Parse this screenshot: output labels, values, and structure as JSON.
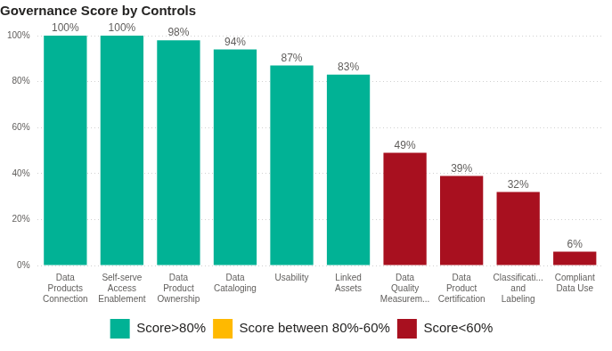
{
  "chart_data": {
    "type": "bar",
    "title": "Governance Score by Controls",
    "categories": [
      "Data Products Connection",
      "Self-serve Access Enablement",
      "Data Product Ownership",
      "Data Cataloging",
      "Usability",
      "Linked Assets",
      "Data Quality Measurem...",
      "Data Product Certification",
      "Classificati... and Labeling",
      "Compliant Data Use"
    ],
    "series": [
      {
        "name": "Score>80%",
        "color": "#01B295",
        "values": [
          100,
          100,
          98,
          94,
          87,
          83,
          null,
          null,
          null,
          null
        ],
        "value_labels": [
          "100%",
          "100%",
          "98%",
          "94%",
          "87%",
          "83%",
          null,
          null,
          null,
          null
        ]
      },
      {
        "name": "Score between 80%-60%",
        "color": "#FFB900",
        "values": [
          null,
          null,
          null,
          null,
          null,
          null,
          null,
          null,
          null,
          null
        ],
        "value_labels": [
          null,
          null,
          null,
          null,
          null,
          null,
          null,
          null,
          null,
          null
        ]
      },
      {
        "name": "Score<60%",
        "color": "#A8101F",
        "values": [
          null,
          null,
          null,
          null,
          null,
          null,
          49,
          39,
          32,
          6
        ],
        "value_labels": [
          null,
          null,
          null,
          null,
          null,
          null,
          "49%",
          "39%",
          "32%",
          "6%"
        ]
      }
    ],
    "ylim": [
      0,
      100
    ],
    "yticks": [
      {
        "value": 0,
        "label": "0%"
      },
      {
        "value": 20,
        "label": "20%"
      },
      {
        "value": 40,
        "label": "40%"
      },
      {
        "value": 60,
        "label": "60%"
      },
      {
        "value": 80,
        "label": "80%"
      },
      {
        "value": 100,
        "label": "100%"
      }
    ],
    "grid": true,
    "legend": "bottom",
    "data_labels": true
  }
}
